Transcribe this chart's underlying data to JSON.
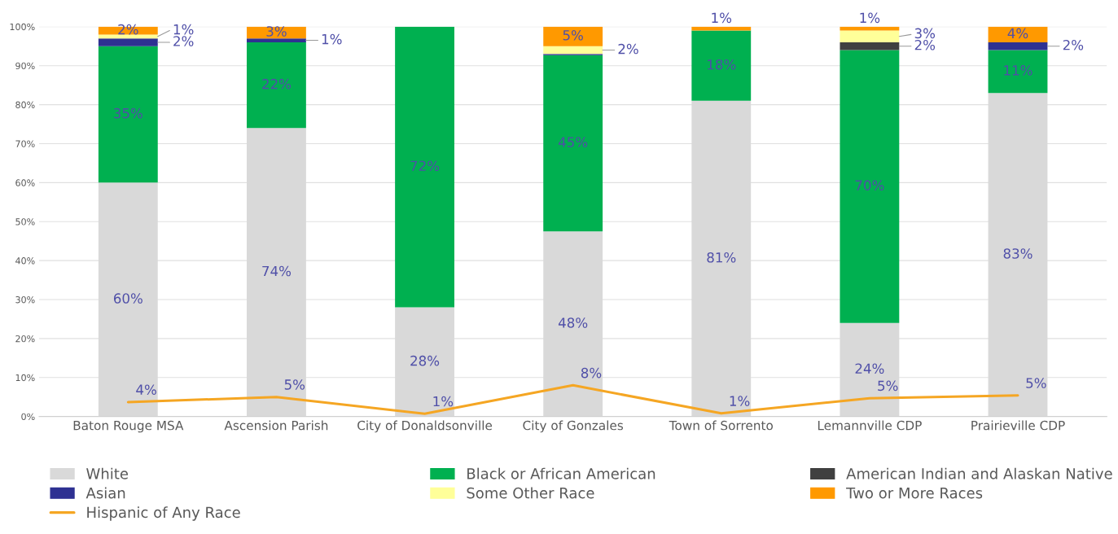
{
  "chart_data": {
    "type": "bar",
    "stacked": true,
    "categories": [
      "Baton Rouge MSA",
      "Ascension Parish",
      "City of Donaldsonville",
      "City of Gonzales",
      "Town of Sorrento",
      "Lemannville CDP",
      "Prairieville CDP"
    ],
    "series": [
      {
        "name": "White",
        "color": "#d9d9d9",
        "values": [
          60,
          74,
          28,
          47.5,
          81,
          24,
          83
        ],
        "value_labels": [
          "60%",
          "74%",
          "28%",
          "48%",
          "81%",
          "24%",
          "83%"
        ]
      },
      {
        "name": "Black or African American",
        "color": "#00b050",
        "values": [
          35,
          22,
          72,
          45.2,
          18,
          70,
          11
        ],
        "value_labels": [
          "35%",
          "22%",
          "72%",
          "45%",
          "18%",
          "70%",
          "11%"
        ]
      },
      {
        "name": "American Indian and Alaskan Native",
        "color": "#404040",
        "values": [
          null,
          null,
          null,
          null,
          null,
          2,
          null
        ],
        "value_labels": [
          null,
          null,
          null,
          null,
          null,
          "2%",
          null
        ]
      },
      {
        "name": "Asian",
        "color": "#2e3192",
        "values": [
          2,
          1,
          null,
          0.3,
          null,
          null,
          2
        ],
        "value_labels": [
          "2%",
          "1%",
          null,
          null,
          null,
          null,
          "2%"
        ]
      },
      {
        "name": "Some Other Race",
        "color": "#ffff99",
        "values": [
          1,
          null,
          null,
          2,
          null,
          3,
          null
        ],
        "value_labels": [
          "1%",
          null,
          null,
          "2%",
          null,
          "3%",
          null
        ]
      },
      {
        "name": "Two or More Races",
        "color": "#ff9900",
        "values": [
          2,
          3,
          null,
          5,
          1,
          1,
          4
        ],
        "value_labels": [
          "2%",
          "3%",
          null,
          "5%",
          "1%",
          "1%",
          "4%"
        ]
      },
      {
        "name": "Hispanic of Any Race",
        "type": "line",
        "color": "#f5a623",
        "values": [
          3.7,
          5,
          0.7,
          8,
          0.8,
          4.7,
          5.4
        ],
        "value_labels": [
          "4%",
          "5%",
          "1%",
          "8%",
          "1%",
          "5%",
          "5%"
        ]
      }
    ],
    "ylim": [
      0,
      100
    ],
    "yticks": [
      {
        "value": 0,
        "label": "0%"
      },
      {
        "value": 10,
        "label": "10%"
      },
      {
        "value": 20,
        "label": "20%"
      },
      {
        "value": 30,
        "label": "30%"
      },
      {
        "value": 40,
        "label": "40%"
      },
      {
        "value": 50,
        "label": "50%"
      },
      {
        "value": 60,
        "label": "60%"
      },
      {
        "value": 70,
        "label": "70%"
      },
      {
        "value": 80,
        "label": "80%"
      },
      {
        "value": 90,
        "label": "90%"
      },
      {
        "value": 100,
        "label": "100%"
      }
    ],
    "grid": "y",
    "legend": "bottom"
  }
}
